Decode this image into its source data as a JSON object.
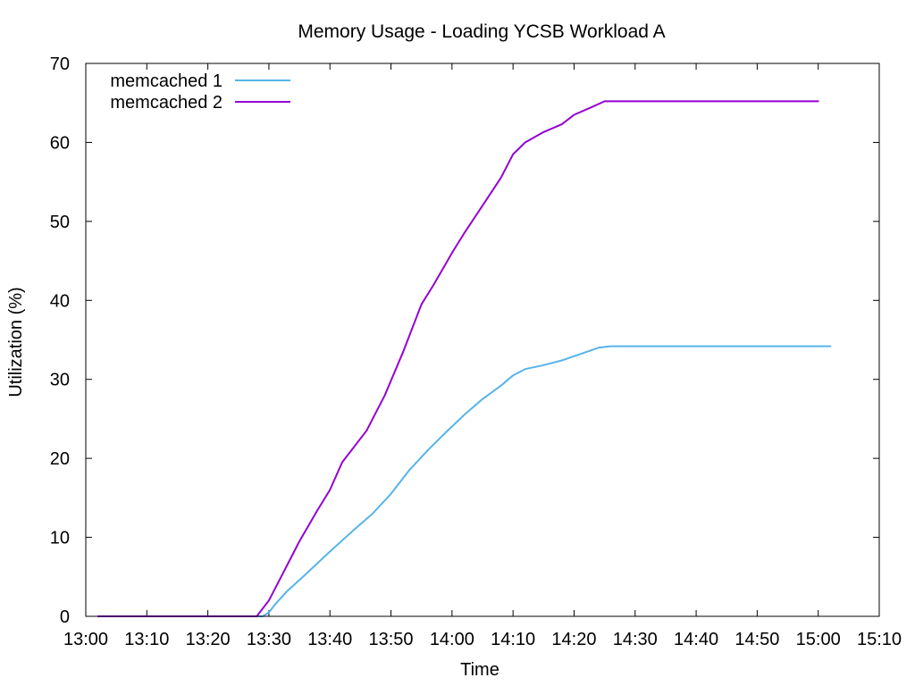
{
  "chart_data": {
    "type": "line",
    "title": "Memory Usage - Loading YCSB Workload A",
    "xlabel": "Time",
    "ylabel": "Utilization (%)",
    "x_tick_labels": [
      "13:00",
      "13:10",
      "13:20",
      "13:30",
      "13:40",
      "13:50",
      "14:00",
      "14:10",
      "14:20",
      "14:30",
      "14:40",
      "14:50",
      "15:00",
      "15:10"
    ],
    "xlim": [
      "13:00",
      "15:10"
    ],
    "ylim": [
      0,
      70
    ],
    "y_ticks": [
      0,
      10,
      20,
      30,
      40,
      50,
      60,
      70
    ],
    "grid": false,
    "legend_position": "top-left",
    "series": [
      {
        "name": "memcached 1",
        "color": "#56b4e9",
        "points": [
          [
            "13:02",
            0
          ],
          [
            "13:29",
            0
          ],
          [
            "13:30",
            0.5
          ],
          [
            "13:31",
            1.5
          ],
          [
            "13:33",
            3.2
          ],
          [
            "13:36",
            5.3
          ],
          [
            "13:40",
            8.2
          ],
          [
            "13:44",
            11.0
          ],
          [
            "13:47",
            13.0
          ],
          [
            "13:50",
            15.5
          ],
          [
            "13:53",
            18.5
          ],
          [
            "13:56",
            21.0
          ],
          [
            "13:59",
            23.3
          ],
          [
            "14:02",
            25.5
          ],
          [
            "14:05",
            27.5
          ],
          [
            "14:08",
            29.2
          ],
          [
            "14:10",
            30.5
          ],
          [
            "14:12",
            31.3
          ],
          [
            "14:15",
            31.8
          ],
          [
            "14:18",
            32.4
          ],
          [
            "14:21",
            33.2
          ],
          [
            "14:24",
            34.0
          ],
          [
            "14:26",
            34.2
          ],
          [
            "15:02",
            34.2
          ]
        ]
      },
      {
        "name": "memcached 2",
        "color": "#9400d3",
        "points": [
          [
            "13:02",
            0
          ],
          [
            "13:28",
            0
          ],
          [
            "13:30",
            2.0
          ],
          [
            "13:32",
            5.0
          ],
          [
            "13:35",
            9.5
          ],
          [
            "13:38",
            13.5
          ],
          [
            "13:40",
            16.0
          ],
          [
            "13:42",
            19.5
          ],
          [
            "13:46",
            23.5
          ],
          [
            "13:49",
            28.0
          ],
          [
            "13:52",
            33.5
          ],
          [
            "13:55",
            39.5
          ],
          [
            "13:57",
            42.0
          ],
          [
            "14:00",
            46.0
          ],
          [
            "14:02",
            48.5
          ],
          [
            "14:05",
            52.0
          ],
          [
            "14:08",
            55.5
          ],
          [
            "14:10",
            58.5
          ],
          [
            "14:12",
            60.0
          ],
          [
            "14:15",
            61.3
          ],
          [
            "14:18",
            62.3
          ],
          [
            "14:20",
            63.5
          ],
          [
            "14:23",
            64.5
          ],
          [
            "14:25",
            65.2
          ],
          [
            "15:00",
            65.2
          ]
        ]
      }
    ]
  }
}
